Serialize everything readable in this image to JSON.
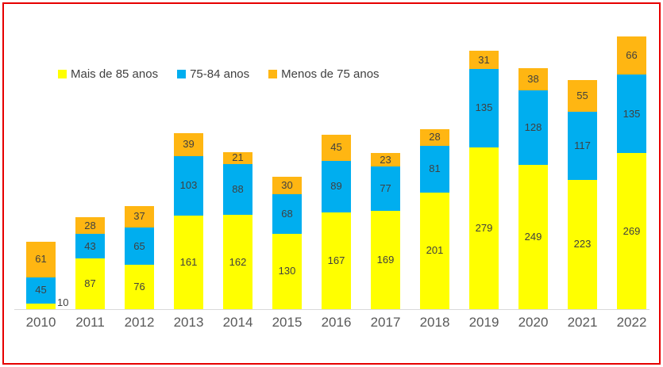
{
  "chart_data": {
    "type": "bar",
    "stacked": true,
    "categories": [
      "2010",
      "2011",
      "2012",
      "2013",
      "2014",
      "2015",
      "2016",
      "2017",
      "2018",
      "2019",
      "2020",
      "2021",
      "2022"
    ],
    "series": [
      {
        "name": "Mais de 85 anos",
        "color": "#FFFF00",
        "values": [
          10,
          87,
          76,
          161,
          162,
          130,
          167,
          169,
          201,
          279,
          249,
          223,
          269
        ]
      },
      {
        "name": "75-84 anos",
        "color": "#00AEEF",
        "values": [
          45,
          43,
          65,
          103,
          88,
          68,
          89,
          77,
          81,
          135,
          128,
          117,
          135
        ]
      },
      {
        "name": "Menos de 75 anos",
        "color": "#FFB612",
        "values": [
          61,
          28,
          37,
          39,
          21,
          30,
          45,
          23,
          28,
          31,
          38,
          55,
          66
        ]
      }
    ],
    "title": "",
    "xlabel": "",
    "ylabel": "",
    "ylim": [
      0,
      500
    ],
    "grid": false,
    "legend_position": "top-left",
    "data_labels": true
  },
  "colors": {
    "frame_border": "#e60000",
    "axis_line": "#d9d9d9",
    "data_label_text": "#404040",
    "tick_text": "#595959"
  }
}
